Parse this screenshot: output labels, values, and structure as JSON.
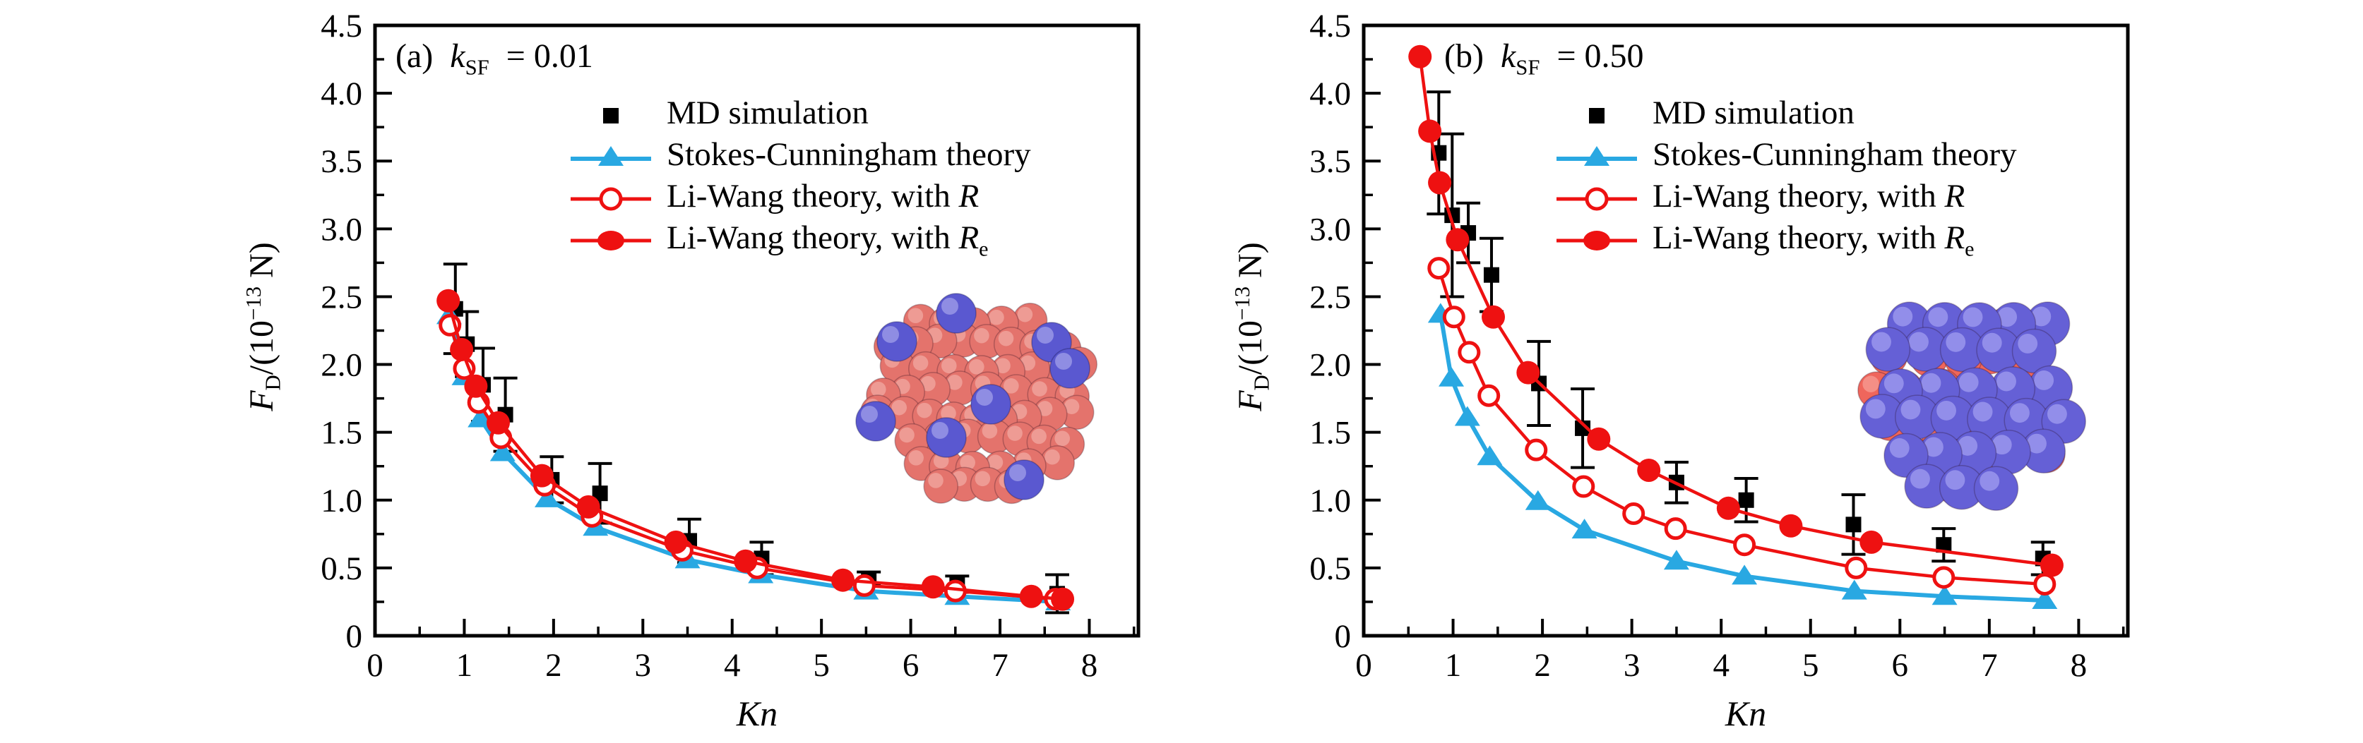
{
  "figure": {
    "background": "#ffffff",
    "colors": {
      "md": "#000000",
      "sc": "#29a8e2",
      "lw": "#ee1111",
      "axis": "#000000"
    },
    "x_tick_labels": [
      "0",
      "1",
      "2",
      "3",
      "4",
      "5",
      "6",
      "7",
      "8"
    ],
    "y_tick_labels": [
      "0",
      "0.5",
      "1.0",
      "1.5",
      "2.0",
      "2.5",
      "3.0",
      "3.5",
      "4.0",
      "4.5"
    ],
    "xlabel": {
      "var": "Kn"
    },
    "ylabel": {
      "var": "F",
      "sub": "D",
      "mid": "/(10",
      "sup": "−13",
      "end": " N)"
    },
    "legend": [
      {
        "id": "md",
        "marker": "black-filled-square",
        "label": "MD simulation",
        "math": "",
        "math_sub": ""
      },
      {
        "id": "sc",
        "marker": "blue-triangle-line",
        "label": "Stokes-Cunningham theory",
        "math": "",
        "math_sub": ""
      },
      {
        "id": "lwr",
        "marker": "red-open-circle-line",
        "label": "Li-Wang theory, with ",
        "math": "R",
        "math_sub": ""
      },
      {
        "id": "lwre",
        "marker": "red-filled-circle-line",
        "label": "Li-Wang theory, with ",
        "math": "R",
        "math_sub": "e"
      }
    ]
  },
  "chart_data": [
    {
      "id": "a",
      "type": "line",
      "title": {
        "prefix": "(a)",
        "var": "k",
        "sub": "SF",
        "eq": "= 0.01",
        "text": "(a) k_SF = 0.01"
      },
      "xlabel": "Kn",
      "ylabel": "F_D/(10^-13 N)",
      "xlim": [
        0,
        8.55
      ],
      "ylim": [
        0,
        4.5
      ],
      "x_ticks": [
        0,
        1,
        2,
        3,
        4,
        5,
        6,
        7,
        8
      ],
      "y_ticks": [
        0,
        0.5,
        1.0,
        1.5,
        2.0,
        2.5,
        3.0,
        3.5,
        4.0,
        4.5
      ],
      "x_minor_step": 0.5,
      "y_minor_step": 0.25,
      "grid": false,
      "legend_position": "upper-center",
      "inset": {
        "description": "nanoparticle cluster: salmon-red spheres with a few blue dopant spheres (k_SF = 0.01)",
        "body_color": "#e4736c",
        "body_highlight": "#f2a8a2",
        "dopant_color": "#5a58d0",
        "dopant_highlight": "#9997e6"
      },
      "series": [
        {
          "name": "MD simulation",
          "type": "scatter",
          "marker": "square",
          "color": "#000000",
          "x": [
            0.9,
            1.03,
            1.21,
            1.46,
            1.98,
            2.52,
            3.52,
            4.33,
            5.53,
            6.52,
            7.64
          ],
          "y": [
            2.41,
            2.15,
            1.85,
            1.63,
            1.15,
            1.05,
            0.7,
            0.57,
            0.42,
            0.38,
            0.31
          ],
          "yerr": [
            0.33,
            0.24,
            0.27,
            0.27,
            0.17,
            0.22,
            0.16,
            0.12,
            0.05,
            0.06,
            0.14
          ]
        },
        {
          "name": "Stokes-Cunningham theory",
          "type": "line+marker",
          "marker": "triangle",
          "color": "#29a8e2",
          "x": [
            0.83,
            1.0,
            1.18,
            1.43,
            1.93,
            2.47,
            3.5,
            4.32,
            5.5,
            6.52,
            7.65
          ],
          "y": [
            2.36,
            1.91,
            1.6,
            1.35,
            1.01,
            0.8,
            0.56,
            0.45,
            0.33,
            0.29,
            0.25
          ]
        },
        {
          "name": "Li-Wang theory, with R",
          "type": "line+marker",
          "marker": "open-circle",
          "color": "#ee1111",
          "x": [
            0.84,
            1.0,
            1.16,
            1.41,
            1.9,
            2.43,
            3.44,
            4.28,
            5.48,
            6.5,
            7.62
          ],
          "y": [
            2.29,
            1.97,
            1.72,
            1.46,
            1.11,
            0.88,
            0.63,
            0.5,
            0.37,
            0.33,
            0.27
          ]
        },
        {
          "name": "Li-Wang theory, with Re",
          "type": "line+marker",
          "marker": "filled-circle",
          "color": "#ee1111",
          "x": [
            0.82,
            0.97,
            1.13,
            1.38,
            1.87,
            2.39,
            3.37,
            4.15,
            5.24,
            6.25,
            7.35,
            7.7
          ],
          "y": [
            2.47,
            2.11,
            1.84,
            1.57,
            1.18,
            0.95,
            0.69,
            0.55,
            0.41,
            0.36,
            0.29,
            0.27
          ]
        }
      ]
    },
    {
      "id": "b",
      "type": "line",
      "title": {
        "prefix": "(b)",
        "var": "k",
        "sub": "SF",
        "eq": "= 0.50",
        "text": "(b) k_SF = 0.50"
      },
      "xlabel": "Kn",
      "ylabel": "F_D/(10^-13 N)",
      "xlim": [
        0,
        8.55
      ],
      "ylim": [
        0,
        4.5
      ],
      "x_ticks": [
        0,
        1,
        2,
        3,
        4,
        5,
        6,
        7,
        8
      ],
      "y_ticks": [
        0,
        0.5,
        1.0,
        1.5,
        2.0,
        2.5,
        3.0,
        3.5,
        4.0,
        4.5
      ],
      "x_minor_step": 0.5,
      "y_minor_step": 0.25,
      "grid": false,
      "legend_position": "upper-center",
      "inset": {
        "description": "nanoparticle cluster densely covered by blue-violet spheres over a salmon core (k_SF = 0.50)",
        "body_color": "#ef665c",
        "body_highlight": "#f79d94",
        "dopant_color": "#6560d6",
        "dopant_highlight": "#a19ef0"
      },
      "series": [
        {
          "name": "MD simulation",
          "type": "scatter",
          "marker": "square",
          "color": "#000000",
          "x": [
            0.84,
            0.99,
            1.17,
            1.43,
            1.96,
            2.45,
            3.5,
            4.28,
            5.48,
            6.49,
            7.6
          ],
          "y": [
            3.56,
            3.1,
            2.97,
            2.66,
            1.86,
            1.53,
            1.13,
            1.0,
            0.82,
            0.67,
            0.57
          ],
          "yerr": [
            0.45,
            0.6,
            0.22,
            0.27,
            0.31,
            0.29,
            0.15,
            0.16,
            0.22,
            0.12,
            0.12
          ]
        },
        {
          "name": "Stokes-Cunningham theory",
          "type": "line+marker",
          "marker": "triangle",
          "color": "#29a8e2",
          "x": [
            0.86,
            0.98,
            1.16,
            1.41,
            1.95,
            2.47,
            3.5,
            4.26,
            5.49,
            6.5,
            7.62
          ],
          "y": [
            2.37,
            1.9,
            1.61,
            1.32,
            0.99,
            0.78,
            0.55,
            0.44,
            0.33,
            0.29,
            0.26
          ]
        },
        {
          "name": "Li-Wang theory, with R",
          "type": "line+marker",
          "marker": "open-circle",
          "color": "#ee1111",
          "x": [
            0.84,
            1.01,
            1.18,
            1.4,
            1.93,
            2.46,
            3.02,
            3.49,
            4.26,
            5.51,
            6.49,
            7.62
          ],
          "y": [
            2.71,
            2.35,
            2.09,
            1.77,
            1.37,
            1.1,
            0.9,
            0.79,
            0.67,
            0.5,
            0.43,
            0.38
          ]
        },
        {
          "name": "Li-Wang theory, with Re",
          "type": "line+marker",
          "marker": "filled-circle",
          "color": "#ee1111",
          "x": [
            0.63,
            0.74,
            0.85,
            1.05,
            1.45,
            1.84,
            2.63,
            3.19,
            4.08,
            4.78,
            5.68,
            7.7
          ],
          "y": [
            4.27,
            3.72,
            3.34,
            2.92,
            2.35,
            1.94,
            1.45,
            1.22,
            0.94,
            0.81,
            0.69,
            0.52
          ]
        }
      ]
    }
  ]
}
